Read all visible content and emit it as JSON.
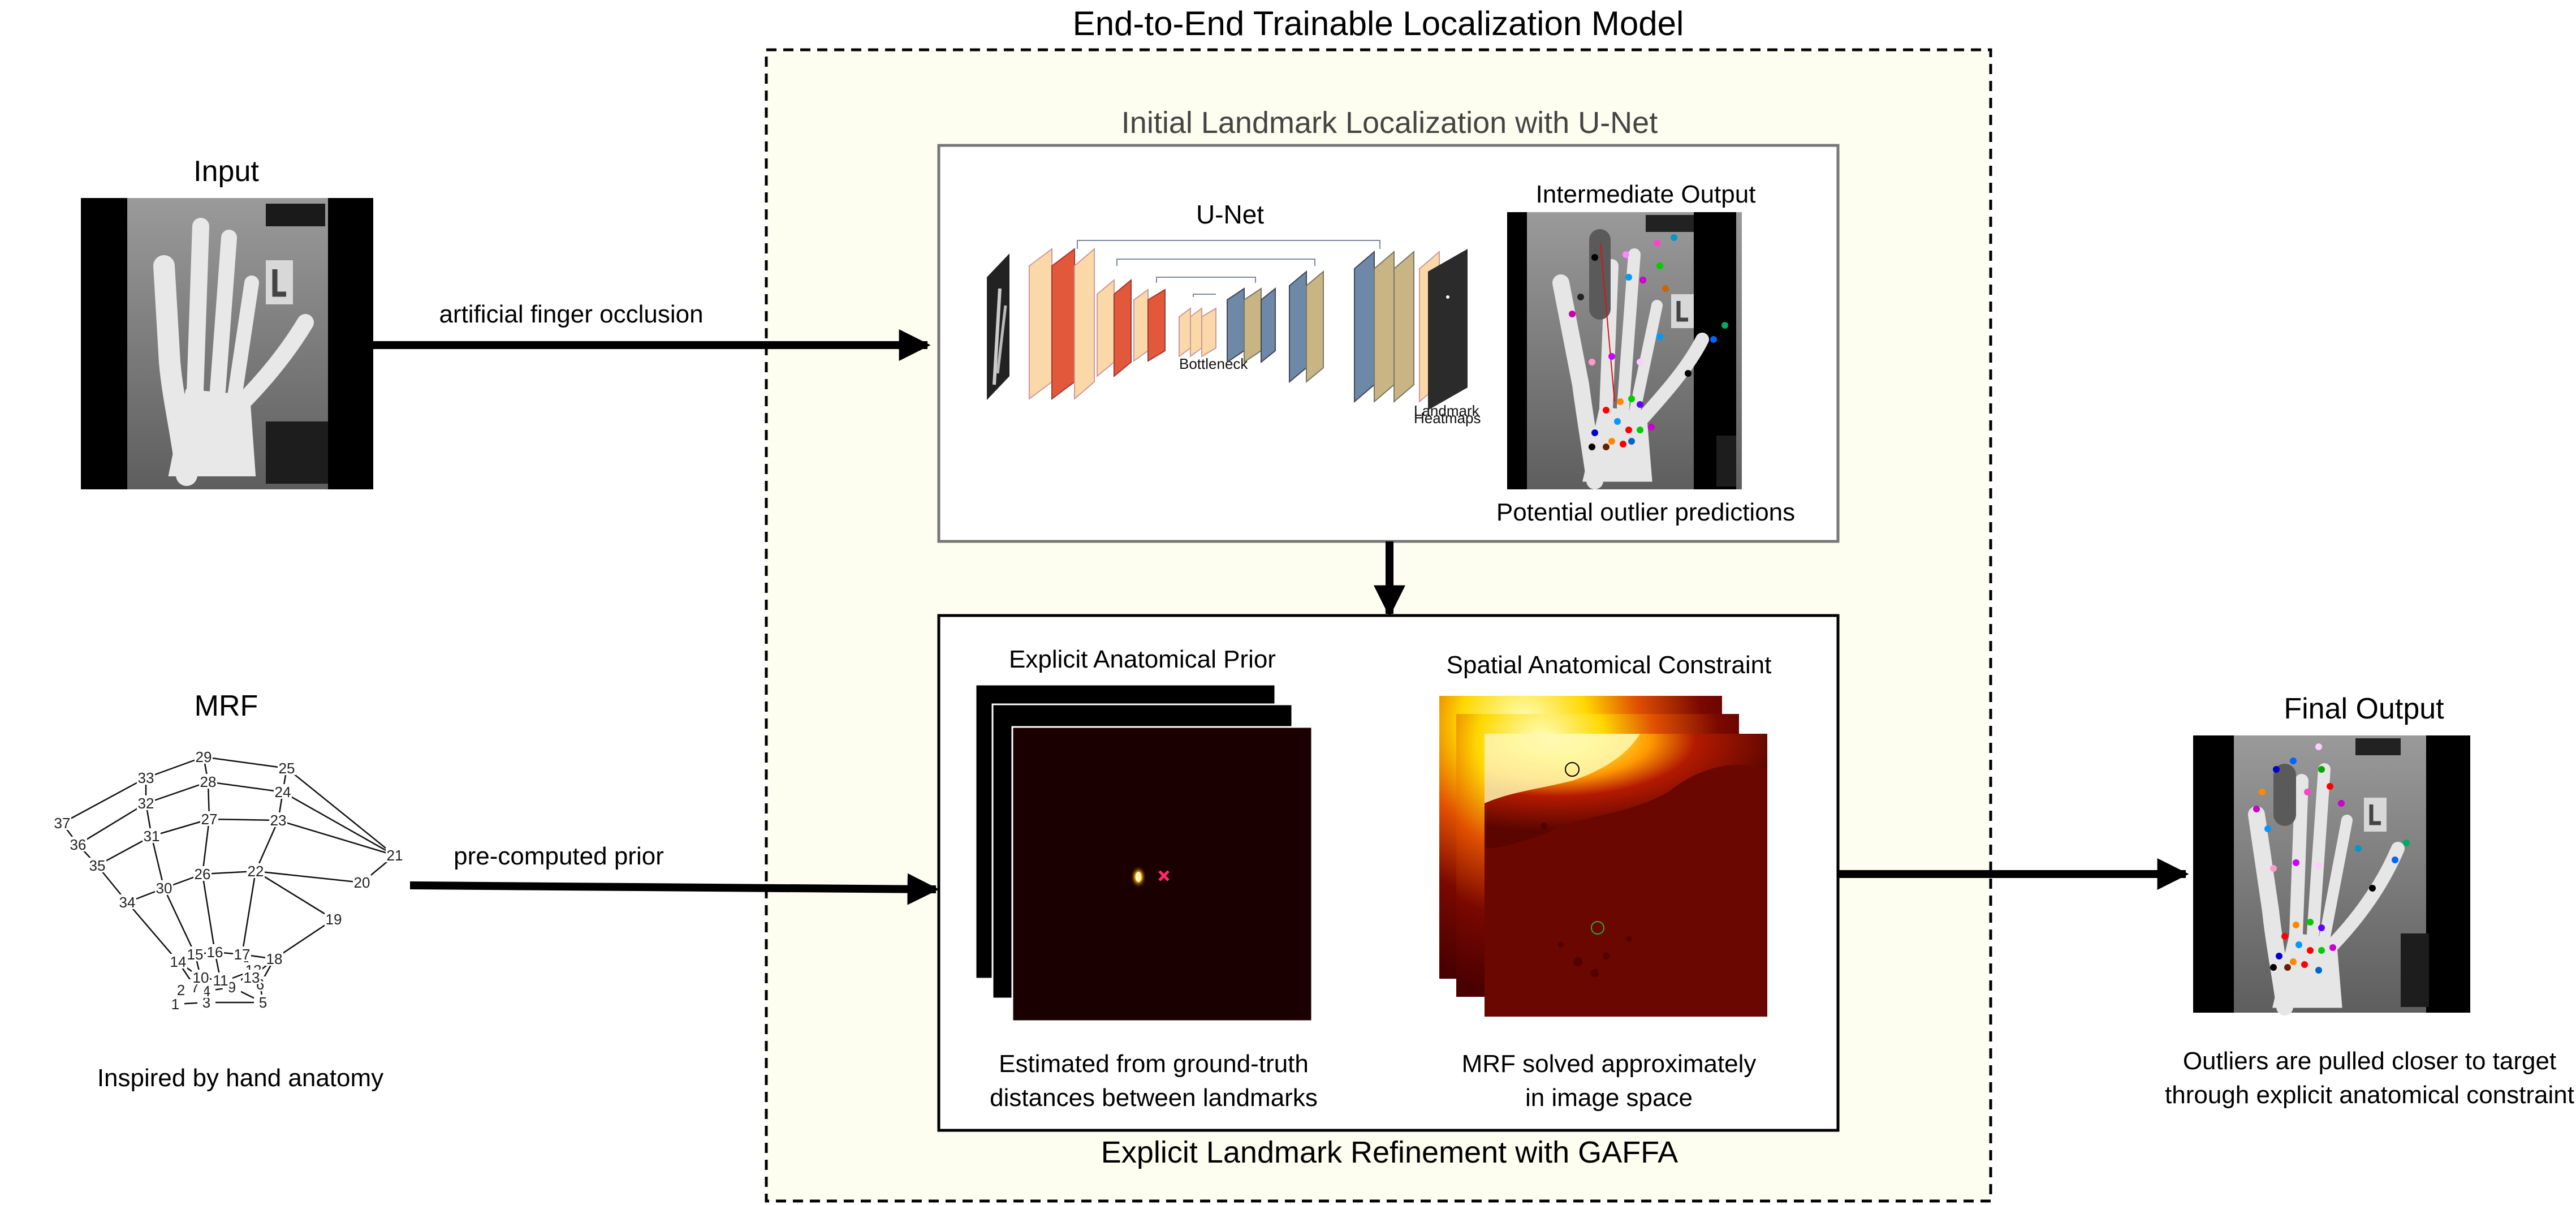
{
  "title": "End-to-End Trainable Localization Model",
  "input": {
    "label": "Input"
  },
  "edge_occlusion": "artificial finger occlusion",
  "unet_section": {
    "title": "Initial Landmark Localization with U-Net",
    "unet_label": "U-Net",
    "intermediate_title": "Intermediate Output",
    "outlier_caption": "Potential outlier predictions"
  },
  "mrf": {
    "label": "MRF",
    "caption": "Inspired by hand anatomy",
    "node_labels": [
      "1",
      "2",
      "3",
      "4",
      "5",
      "6",
      "7",
      "8",
      "9",
      "10",
      "11",
      "12",
      "13",
      "14",
      "15",
      "16",
      "17",
      "18",
      "19",
      "20",
      "21",
      "22",
      "23",
      "24",
      "25",
      "26",
      "27",
      "28",
      "29",
      "30",
      "31",
      "32",
      "33",
      "34",
      "35",
      "36",
      "37"
    ]
  },
  "edge_prior": "pre-computed prior",
  "gaffa_section": {
    "title": "Explicit Landmark Refinement with GAFFA",
    "prior_title": "Explicit Anatomical Prior",
    "prior_caption_1": "Estimated from ground-truth",
    "prior_caption_2": "distances between landmarks",
    "constraint_title": "Spatial Anatomical Constraint",
    "constraint_caption_1": "MRF solved approximately",
    "constraint_caption_2": "in image space"
  },
  "final": {
    "label": "Final Output",
    "caption_1": "Outliers are pulled closer to target",
    "caption_2": "through explicit anatomical constraint"
  },
  "colors": {
    "model_bg": "#fdfdf0",
    "unet_orange": "#e2583b",
    "unet_peach": "#fbd8a8",
    "unet_blue": "#6e88a8",
    "unet_tan": "#c9b583"
  }
}
